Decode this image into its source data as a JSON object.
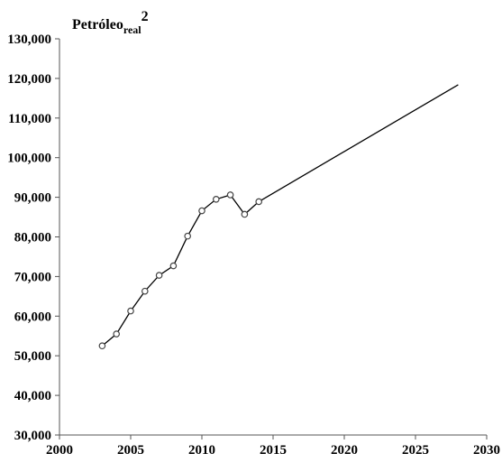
{
  "chart_data": {
    "type": "line",
    "title": {
      "main": "Petróleo",
      "subscript": "real",
      "superscript": "2"
    },
    "xlabel": "",
    "ylabel": "",
    "xlim": [
      2000,
      2030
    ],
    "ylim": [
      30000,
      130000
    ],
    "x_ticks": [
      2000,
      2005,
      2010,
      2015,
      2020,
      2025,
      2030
    ],
    "x_tick_labels": [
      "2000",
      "2005",
      "2010",
      "2015",
      "2020",
      "2025",
      "2030"
    ],
    "y_ticks": [
      30000,
      40000,
      50000,
      60000,
      70000,
      80000,
      90000,
      100000,
      110000,
      120000,
      130000
    ],
    "y_tick_labels": [
      "30,000",
      "40,000",
      "50,000",
      "60,000",
      "70,000",
      "80,000",
      "90,000",
      "100,000",
      "110,000",
      "120,000",
      "130,000"
    ],
    "grid": false,
    "series": [
      {
        "kind": "observed",
        "markers": true,
        "x": [
          2003,
          2004,
          2005,
          2006,
          2007,
          2008,
          2009,
          2010,
          2011,
          2012,
          2013,
          2014
        ],
        "y": [
          52500,
          55500,
          61300,
          66300,
          70300,
          72700,
          80200,
          86600,
          89500,
          90600,
          85700,
          88900
        ]
      },
      {
        "kind": "projection",
        "markers": false,
        "x": [
          2014,
          2028
        ],
        "y": [
          88900,
          118400
        ]
      }
    ]
  }
}
